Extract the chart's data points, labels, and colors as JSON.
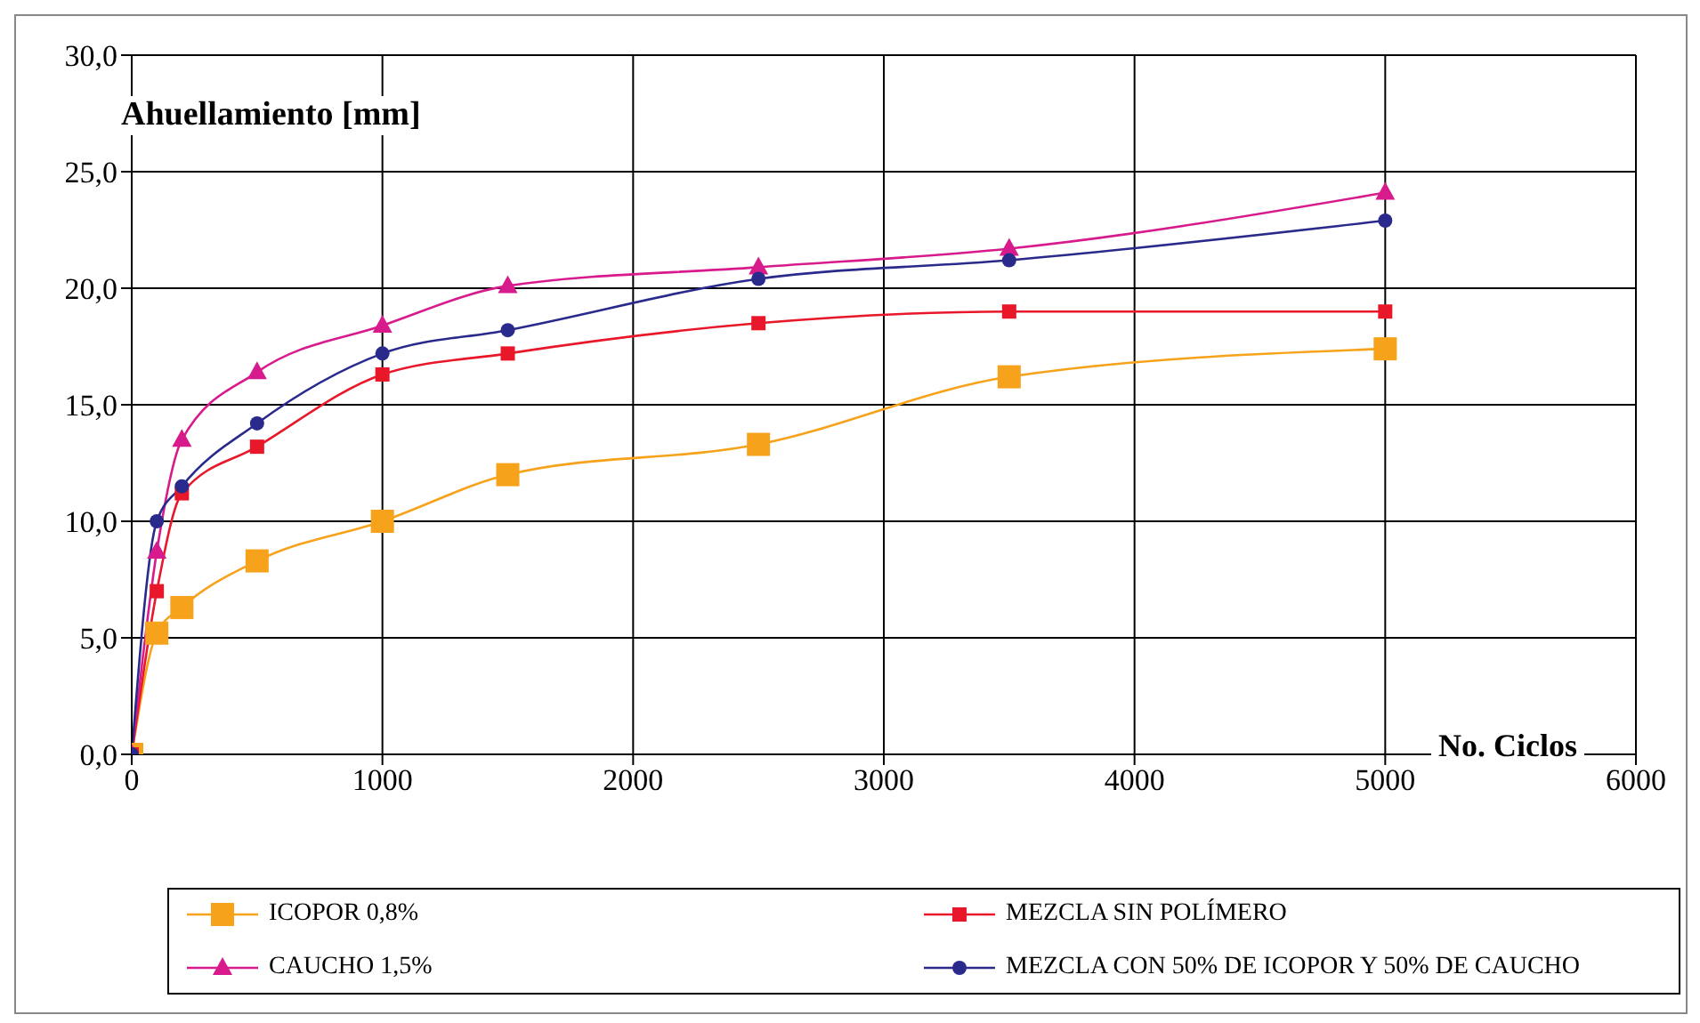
{
  "chart_data": {
    "type": "line",
    "ylabel": "Ahuellamiento [mm]",
    "xlabel": "No. Ciclos",
    "x": [
      0,
      100,
      200,
      500,
      1000,
      1500,
      2500,
      3500,
      5000
    ],
    "series": [
      {
        "name": "ICOPOR 0,8%",
        "color": "#f7a21b",
        "marker": "square",
        "values": [
          0,
          5.2,
          6.3,
          8.3,
          10.0,
          12.0,
          13.3,
          16.2,
          17.4
        ]
      },
      {
        "name": "MEZCLA SIN POLÍMERO",
        "color": "#e8182a",
        "marker": "square",
        "values": [
          0,
          7.0,
          11.2,
          13.2,
          16.3,
          17.2,
          18.5,
          19.0,
          19.0
        ]
      },
      {
        "name": "CAUCHO 1,5%",
        "color": "#d81b8c",
        "marker": "triangle",
        "values": [
          0,
          8.7,
          13.5,
          16.4,
          18.4,
          20.1,
          20.9,
          21.7,
          24.1
        ]
      },
      {
        "name": "MEZCLA CON 50% DE ICOPOR Y 50% DE CAUCHO",
        "color": "#2a2a8c",
        "marker": "circle",
        "values": [
          0,
          10.0,
          11.5,
          14.2,
          17.2,
          18.2,
          20.4,
          21.2,
          22.9
        ]
      }
    ],
    "xlim": [
      0,
      6000
    ],
    "xticks": [
      0,
      1000,
      2000,
      3000,
      4000,
      5000,
      6000
    ],
    "ylim": [
      0,
      30
    ],
    "yticks": [
      {
        "value": 0,
        "label": "0,0"
      },
      {
        "value": 5,
        "label": "5,0"
      },
      {
        "value": 10,
        "label": "10,0"
      },
      {
        "value": 15,
        "label": "15,0"
      },
      {
        "value": 20,
        "label": "20,0"
      },
      {
        "value": 25,
        "label": "25,0"
      },
      {
        "value": 30,
        "label": "30,0"
      }
    ],
    "grid": true,
    "legend": "bottom",
    "line_style": "solid"
  }
}
